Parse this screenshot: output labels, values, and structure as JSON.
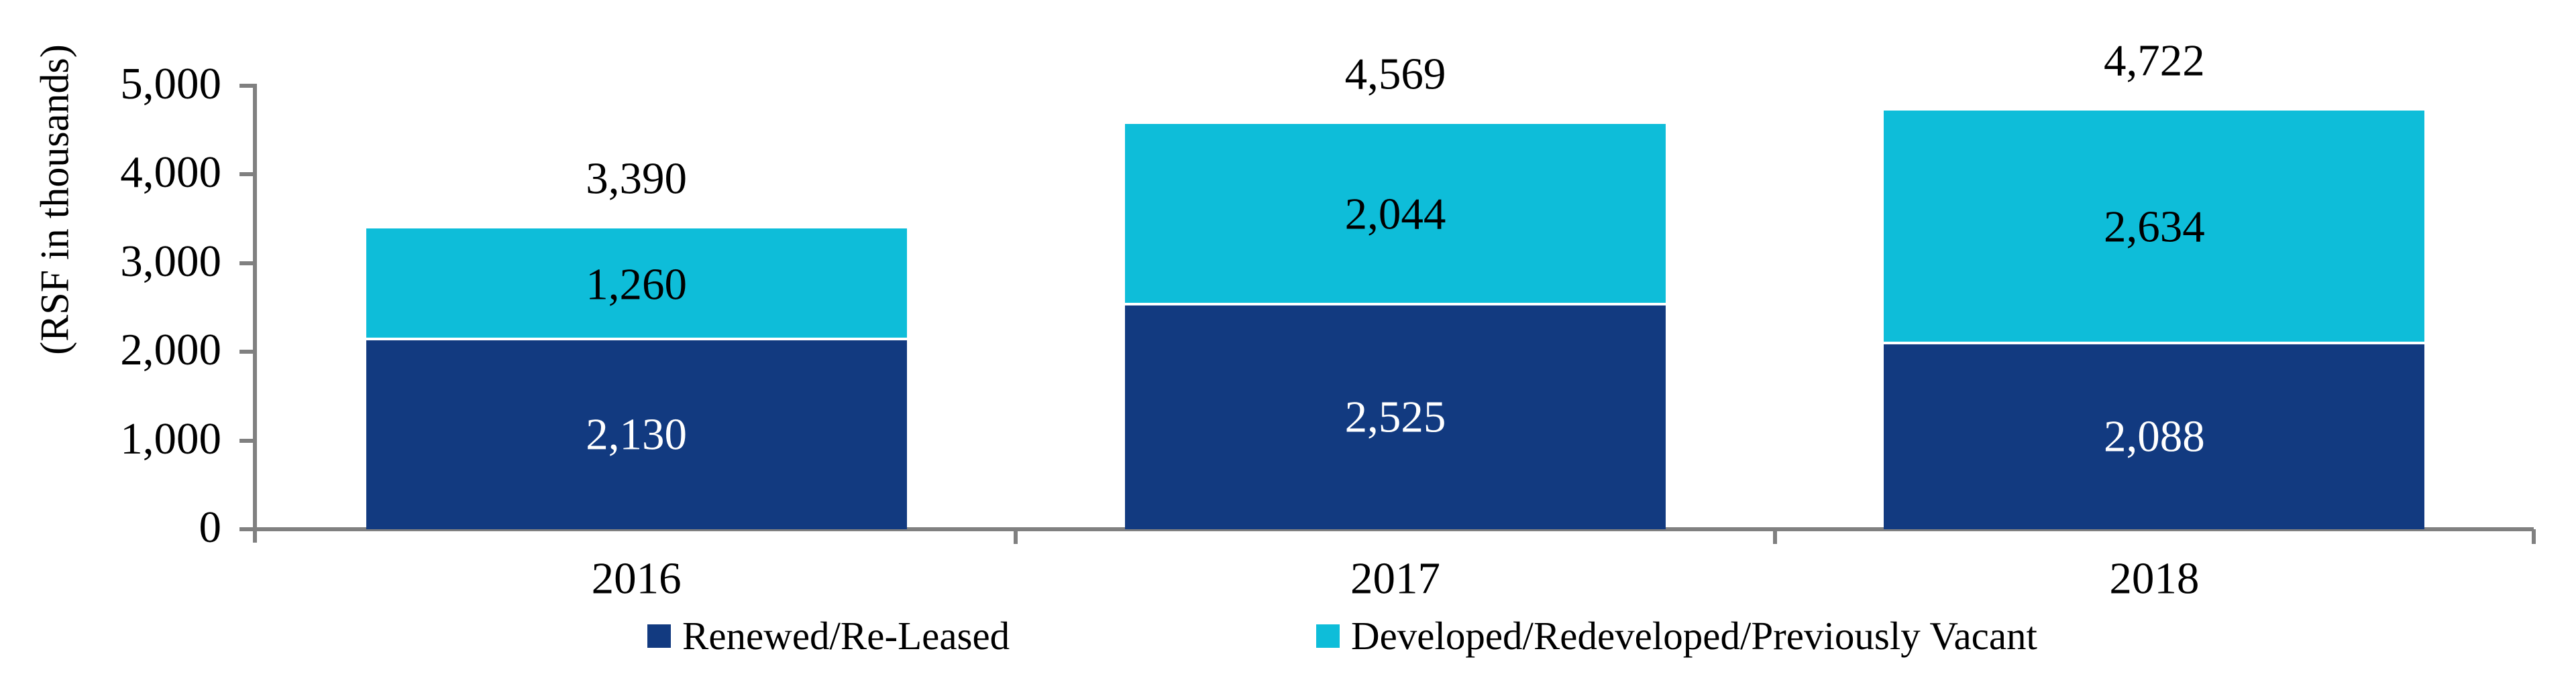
{
  "figure": {
    "background": "#FFFFFF",
    "axis_color": "#808080",
    "segment_divider_color": "#FFFFFF",
    "text_color": "#000000"
  },
  "chart_data": {
    "type": "bar",
    "stacked": true,
    "title": "",
    "xlabel": "",
    "ylabel": "(RSF in thousands)",
    "categories": [
      "2016",
      "2017",
      "2018"
    ],
    "series": [
      {
        "name": "Renewed/Re-Leased",
        "color": "#123A80",
        "values": [
          2130,
          2525,
          2088
        ],
        "value_labels": [
          "2,130",
          "2,525",
          "2,088"
        ],
        "label_color": "#FFFFFF"
      },
      {
        "name": "Developed/Redeveloped/Previously Vacant",
        "color": "#0EBDD9",
        "values": [
          1260,
          2044,
          2634
        ],
        "value_labels": [
          "1,260",
          "2,044",
          "2,634"
        ],
        "label_color": "#000000"
      }
    ],
    "totals": [
      3390,
      4569,
      4722
    ],
    "total_labels": [
      "3,390",
      "4,569",
      "4,722"
    ],
    "y_axis": {
      "min": 0,
      "max": 5000,
      "tick_interval": 1000,
      "tick_labels": [
        "0",
        "1,000",
        "2,000",
        "3,000",
        "4,000",
        "5,000"
      ]
    },
    "legend": {
      "position": "bottom",
      "entries": [
        "Renewed/Re-Leased",
        "Developed/Redeveloped/Previously Vacant"
      ]
    },
    "grid": false
  }
}
